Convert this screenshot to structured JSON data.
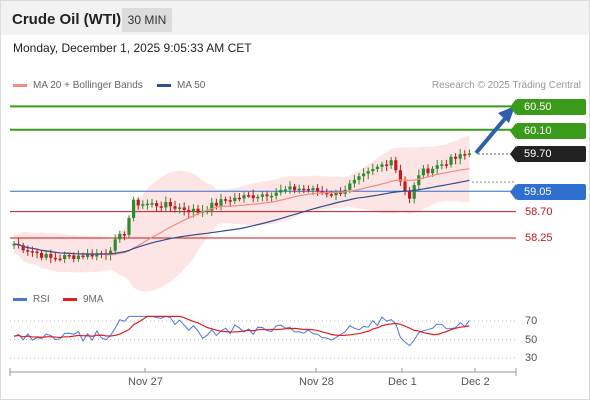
{
  "header": {
    "instrument": "Crude Oil (WTI)",
    "timeframe": "30 MIN",
    "datetime": "Monday, December 1, 2025 9:05:33 AM CET"
  },
  "legend": {
    "ma20_label": "MA 20 + Bollinger Bands",
    "ma20_color": "#f28b82",
    "ma50_label": "MA 50",
    "ma50_color": "#2f4f8f",
    "copyright": "Research © 2025 Trading Central"
  },
  "levels": {
    "r2": {
      "value": "60.50",
      "color": "#3a9a1a"
    },
    "r1": {
      "value": "60.10",
      "color": "#3a9a1a"
    },
    "last": {
      "value": "59.70",
      "color": "#222222"
    },
    "pivot": {
      "value": "59.05",
      "color": "#2e6fd0"
    },
    "s1": {
      "value": "58.70",
      "color": "#c41a1a"
    },
    "s2": {
      "value": "58.25",
      "color": "#c41a1a"
    }
  },
  "rsi_panel": {
    "rsi_label": "RSI",
    "rsi_color": "#4a78d8",
    "ma_label": "9MA",
    "ma_color": "#e02020",
    "ticks": [
      "70",
      "50",
      "30"
    ]
  },
  "x_axis": [
    "Nov 27",
    "Nov 28",
    "Dec 1",
    "Dec 2"
  ],
  "colors": {
    "bull": "#2e8b2e",
    "bear": "#c41a1a",
    "arrow": "#2e5fa8",
    "band": "#fde0e0"
  }
}
